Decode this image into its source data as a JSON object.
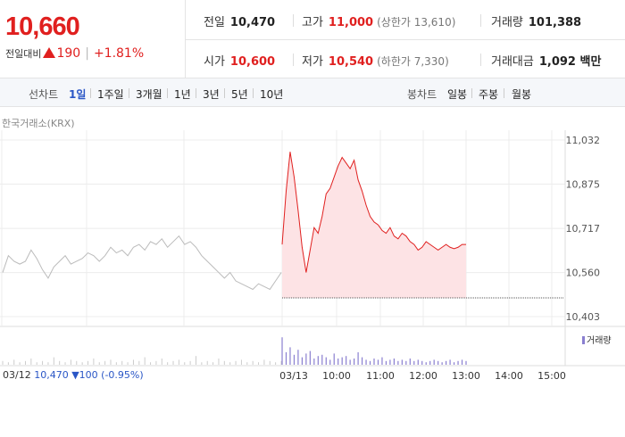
{
  "quote": {
    "price": "10,660",
    "change_label": "전일대비",
    "change_amount": "190",
    "change_pct": "+1.81%"
  },
  "stats": {
    "prev_close_label": "전일",
    "prev_close": "10,470",
    "high_label": "고가",
    "high": "11,000",
    "upper_limit": "(상한가 13,610)",
    "volume_label": "거래량",
    "volume": "101,388",
    "open_label": "시가",
    "open": "10,600",
    "low_label": "저가",
    "low": "10,540",
    "lower_limit": "(하한가 7,330)",
    "trade_value_label": "거래대금",
    "trade_value": "1,092 백만"
  },
  "tabs": {
    "line_label": "선차트",
    "line_items": [
      "1일",
      "1주일",
      "3개월",
      "1년",
      "3년",
      "5년",
      "10년"
    ],
    "candle_label": "봉차트",
    "candle_items": [
      "일봉",
      "주봉",
      "월봉"
    ]
  },
  "source": "한국거래소(KRX)",
  "footer": {
    "date": "03/12",
    "close": "10,470",
    "change": "▼100",
    "pct": "(-0.95%)"
  },
  "colors": {
    "up": "#e0201f",
    "link": "#2a56c6",
    "volume": "#8a7fd0",
    "prev_line": "#bbbbbb"
  },
  "chart_data": {
    "type": "line",
    "y_ticks": [
      "11,032",
      "10,875",
      "10,717",
      "10,560",
      "10,403"
    ],
    "ylim": [
      10403,
      11032
    ],
    "x_labels": [
      "03/13",
      "10:00",
      "11:00",
      "12:00",
      "13:00",
      "14:00",
      "15:00"
    ],
    "prev_day_label": "03/12",
    "volume_legend": "거래량",
    "prev_day_close": 10470,
    "prev_day_series": [
      10560,
      10620,
      10600,
      10590,
      10600,
      10640,
      10610,
      10570,
      10540,
      10580,
      10600,
      10620,
      10590,
      10600,
      10610,
      10630,
      10620,
      10600,
      10620,
      10650,
      10630,
      10640,
      10620,
      10650,
      10660,
      10640,
      10670,
      10660,
      10680,
      10650,
      10670,
      10690,
      10660,
      10670,
      10650,
      10620,
      10600,
      10580,
      10560,
      10540,
      10560,
      10530,
      10520,
      10510,
      10500,
      10520,
      10510,
      10500,
      10530,
      10560
    ],
    "today_series": [
      10660,
      10850,
      10990,
      10900,
      10780,
      10650,
      10560,
      10640,
      10720,
      10700,
      10760,
      10840,
      10860,
      10900,
      10940,
      10970,
      10950,
      10930,
      10960,
      10890,
      10850,
      10800,
      10760,
      10740,
      10730,
      10710,
      10700,
      10720,
      10690,
      10680,
      10700,
      10690,
      10670,
      10660,
      10640,
      10650,
      10670,
      10660,
      10650,
      10640,
      10650,
      10660,
      10650,
      10645,
      10650,
      10660,
      10660
    ],
    "prev_day_volume": [
      3,
      2,
      4,
      2,
      3,
      5,
      2,
      3,
      2,
      6,
      3,
      2,
      4,
      3,
      2,
      3,
      5,
      2,
      3,
      4,
      2,
      3,
      2,
      4,
      3,
      6,
      2,
      3,
      5,
      2,
      3,
      4,
      2,
      3,
      7,
      2,
      3,
      2,
      5,
      3,
      2,
      3,
      4,
      2,
      3,
      2,
      4,
      3,
      2,
      3
    ],
    "today_volume": [
      22,
      10,
      14,
      8,
      12,
      6,
      9,
      11,
      5,
      7,
      8,
      6,
      4,
      9,
      5,
      6,
      7,
      4,
      5,
      10,
      6,
      4,
      3,
      5,
      4,
      6,
      3,
      4,
      5,
      3,
      4,
      3,
      5,
      3,
      4,
      3,
      2,
      3,
      4,
      3,
      2,
      3,
      4,
      2,
      3,
      4,
      3
    ]
  }
}
